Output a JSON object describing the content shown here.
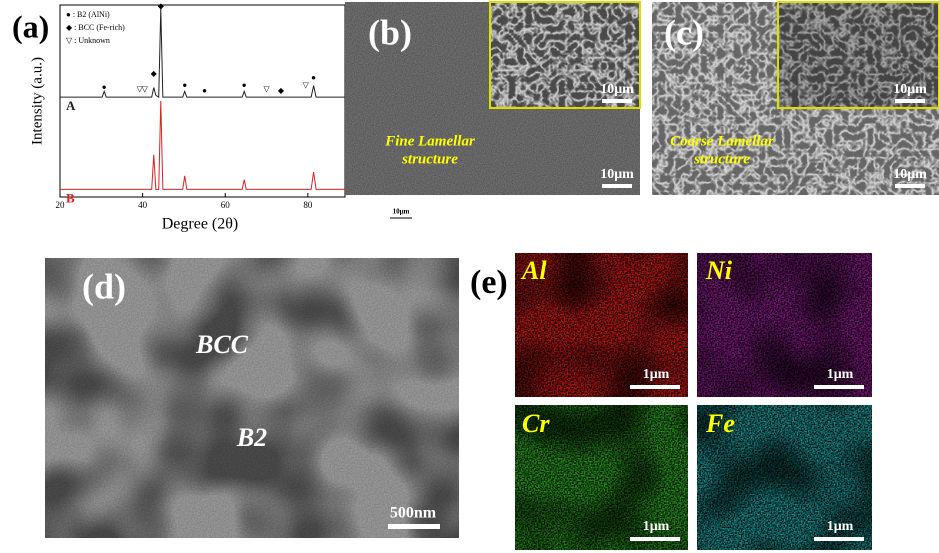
{
  "chart_data": {
    "type": "line",
    "panel_label": "(a)",
    "xlabel": "Degree (2θ)",
    "ylabel": "Intensity (a.u.)",
    "xlim": [
      20,
      89
    ],
    "ylim": [
      0,
      100
    ],
    "xticks": [
      20,
      40,
      60,
      80
    ],
    "legend": [
      "● : B2 (AlNi)",
      "◆ : BCC (Fe-rich)",
      "▽ : Unknown"
    ],
    "series": [
      {
        "name": "A",
        "color": "#222222",
        "x": [
          20,
          30.2,
          30.7,
          31.2,
          42.2,
          42.7,
          43.2,
          43.9,
          44.4,
          44.9,
          49.7,
          50.2,
          50.7,
          64.1,
          64.6,
          65.1,
          80.8,
          81.4,
          82,
          89
        ],
        "values": [
          52,
          52,
          55,
          52,
          52,
          57,
          53,
          52,
          98,
          52,
          52,
          55,
          52,
          52,
          55,
          52,
          52,
          58,
          52,
          52
        ]
      },
      {
        "name": "B",
        "color": "#e02020",
        "x": [
          20,
          42.2,
          42.7,
          43.2,
          43.9,
          44.4,
          44.9,
          49.7,
          50.2,
          50.7,
          64.1,
          64.6,
          65.1,
          80.8,
          81.4,
          82,
          89
        ],
        "values": [
          4,
          4,
          22,
          4,
          4,
          50,
          4,
          4,
          11,
          4,
          4,
          9,
          4,
          4,
          13,
          4,
          4
        ]
      }
    ],
    "markers": [
      {
        "symbol": "●",
        "x": 30.7,
        "y": 57
      },
      {
        "symbol": "▽",
        "x": 39.3,
        "y": 56
      },
      {
        "symbol": "▽",
        "x": 40.5,
        "y": 56
      },
      {
        "symbol": "◆",
        "x": 42.7,
        "y": 64
      },
      {
        "symbol": "◆",
        "x": 44.4,
        "y": 99
      },
      {
        "symbol": "●",
        "x": 50.2,
        "y": 58
      },
      {
        "symbol": "●",
        "x": 55,
        "y": 55
      },
      {
        "symbol": "●",
        "x": 64.6,
        "y": 58
      },
      {
        "symbol": "▽",
        "x": 70,
        "y": 56
      },
      {
        "symbol": "◆",
        "x": 73.5,
        "y": 55
      },
      {
        "symbol": "▽",
        "x": 79.5,
        "y": 58
      },
      {
        "symbol": "●",
        "x": 81.4,
        "y": 62
      }
    ]
  },
  "panels": [
    {
      "label": "(b)",
      "caption": [
        "Fine Lamellar",
        "structure"
      ],
      "inset_scale": "10μm",
      "scale": "10μm"
    },
    {
      "label": "(c)",
      "caption": [
        "Coarse Lamellar",
        "structure"
      ],
      "inset_scale": "10μm",
      "scale": "10μm"
    }
  ],
  "stray_scale": "10μm",
  "panel_d": {
    "label": "(d)",
    "phases": [
      "BCC",
      "B2"
    ],
    "scale": "500nm"
  },
  "panel_e": {
    "label": "(e)",
    "maps": [
      {
        "element": "Al",
        "scale": "1μm"
      },
      {
        "element": "Ni",
        "scale": "1μm"
      },
      {
        "element": "Cr",
        "scale": "1μm"
      },
      {
        "element": "Fe",
        "scale": "1μm"
      }
    ]
  }
}
